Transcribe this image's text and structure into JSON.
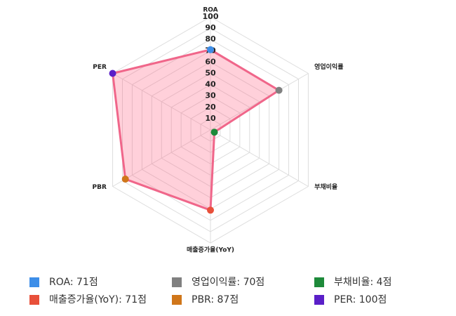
{
  "chart_data": {
    "type": "radar",
    "categories": [
      "ROA",
      "영업이익률",
      "부채비율",
      "매출증가율(YoY)",
      "PBR",
      "PER"
    ],
    "values": [
      71,
      70,
      4,
      71,
      87,
      100
    ],
    "value_labels": [
      "ROA: 71점",
      "영업이익률: 70점",
      "부채비율: 4점",
      "매출증가율(YoY): 71점",
      "PBR: 87점",
      "PER: 100점"
    ],
    "color": "#f0668a",
    "fill": "rgba(255, 99, 132, 0.3)",
    "point_colors": [
      "#3d8ee8",
      "#808080",
      "#1e8a3a",
      "#e8503a",
      "#d0761a",
      "#5a1fc8"
    ],
    "ylim": [
      0,
      100
    ],
    "yticks": [
      10,
      20,
      30,
      40,
      50,
      60,
      70,
      80,
      90,
      100
    ],
    "grid": true
  }
}
